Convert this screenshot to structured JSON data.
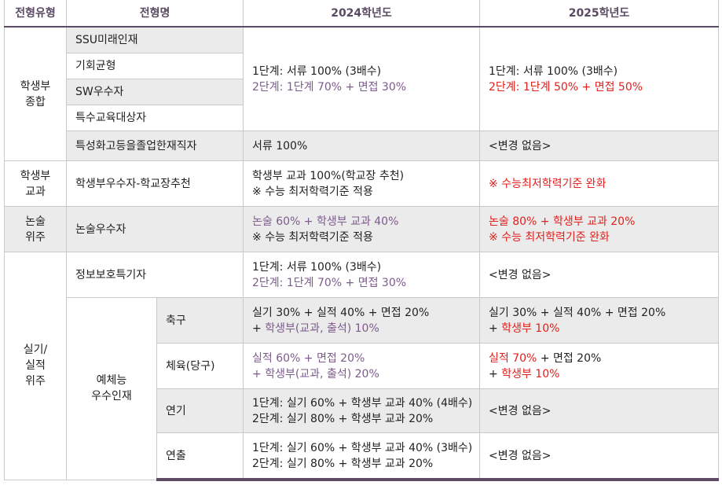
{
  "headers": [
    "전형유형",
    "전형명",
    "2024학년도",
    "2025학년도"
  ],
  "colors": {
    "header_text": "#5a4a63",
    "rule": "#5f4a66",
    "purple": "#7d5b8c",
    "red": "#e0211e",
    "shade": "#ebebeb"
  },
  "r1": {
    "type": [
      "학생부",
      "종합"
    ],
    "names": [
      "SSU미래인재",
      "기회균형",
      "SW우수자",
      "특수교육대상자"
    ],
    "y2024": [
      "1단계: 서류 100% (3배수)",
      "2단계: 1단계 70% + 면접 30%"
    ],
    "y2025": [
      "1단계: 서류 100% (3배수)",
      "2단계: 1단계 50% + 면접 50%"
    ]
  },
  "r2": {
    "name": "특성화고등을졸업한재직자",
    "y2024": "서류 100%",
    "y2025": "<변경 없음>"
  },
  "r3": {
    "type": [
      "학생부",
      "교과"
    ],
    "name": "학생부우수자-학교장추천",
    "y2024": [
      "학생부 교과 100%(학교장 추천)",
      "※ 수능 최저학력기준 적용"
    ],
    "y2025": "※ 수능최저학력기준 완화"
  },
  "r4": {
    "type": [
      "논술",
      "위주"
    ],
    "name": "논술우수자",
    "y2024": [
      "논술 60% + 학생부 교과 40%",
      "※ 수능 최저학력기준 적용"
    ],
    "y2025": [
      "논술 80% + 학생부 교과 20%",
      "※ 수능 최저학력기준 완화"
    ]
  },
  "r5": {
    "type": [
      "실기/",
      "실적",
      "위주"
    ],
    "name": "정보보호특기자",
    "y2024": [
      "1단계: 서류 100% (3배수)",
      "2단계: 1단계 70% + 면접 30%"
    ],
    "y2025": "<변경 없음>"
  },
  "r6": {
    "group": [
      "예체능",
      "우수인재"
    ],
    "sub": "축구",
    "y2024": [
      "실기 30% + 실적 40% + 면접 20%",
      "+ ",
      "학생부(교과, 출석) 10%"
    ],
    "y2025": [
      "실기 30% + 실적 40% + 면접 20%",
      "+ ",
      "학생부 10%"
    ]
  },
  "r7": {
    "sub": "체육(당구)",
    "y2024": [
      "실적 60% + 면접 20%",
      "+ 학생부(교과, 출석) 20%"
    ],
    "y2025": [
      "실적 70%",
      " + 면접 20%",
      "+ ",
      "학생부 10%"
    ]
  },
  "r8": {
    "sub": "연기",
    "y2024": [
      "1단계: 실기 60% + 학생부 교과 40% (4배수)",
      "2단계: 실기 80% + 학생부 교과 20%"
    ],
    "y2025": "<변경 없음>"
  },
  "r9": {
    "sub": "연출",
    "y2024": [
      "1단계: 실기 60% + 학생부 교과 40% (3배수)",
      "2단계: 실기 80% + 학생부 교과 20%"
    ],
    "y2025": "<변경 없음>"
  }
}
